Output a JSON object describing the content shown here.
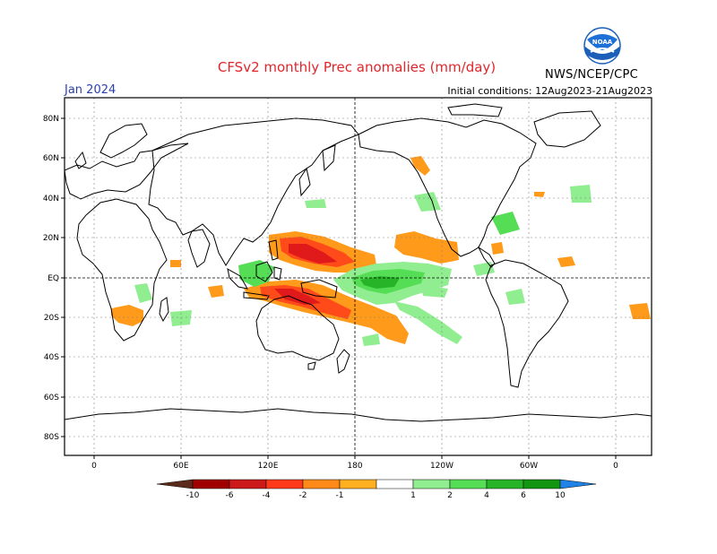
{
  "header": {
    "title": "CFSv2 monthly Prec anomalies (mm/day)",
    "month": "Jan 2024",
    "initial_conditions": "Initial conditions: 12Aug2023-21Aug2023",
    "agency": "NWS/NCEP/CPC",
    "logo_text": "NOAA"
  },
  "map": {
    "lat_labels": [
      "80N",
      "60N",
      "40N",
      "20N",
      "EQ",
      "20S",
      "40S",
      "60S",
      "80S"
    ],
    "lon_labels": [
      "0",
      "60E",
      "120E",
      "180",
      "120W",
      "60W",
      "0"
    ]
  },
  "colorbar": {
    "tick_labels": [
      "-10",
      "-6",
      "-4",
      "-2",
      "-1",
      "1",
      "2",
      "4",
      "6",
      "10"
    ],
    "colors": [
      "#5a2a1a",
      "#a00000",
      "#cc1a1a",
      "#ff3a1a",
      "#ff8a1a",
      "#ffb020",
      "#ffffff",
      "#90ee90",
      "#55dd55",
      "#28b428",
      "#129612",
      "#1e82e6"
    ]
  },
  "anomalies": {
    "dry_colors": {
      "light": "#ff9a1a",
      "medium": "#ff4a1a",
      "strong": "#e01a1a",
      "extreme": "#a50d0d"
    },
    "wet_colors": {
      "light": "#90ee90",
      "medium": "#55dd55",
      "strong": "#28b428",
      "extreme": "#129612"
    }
  }
}
